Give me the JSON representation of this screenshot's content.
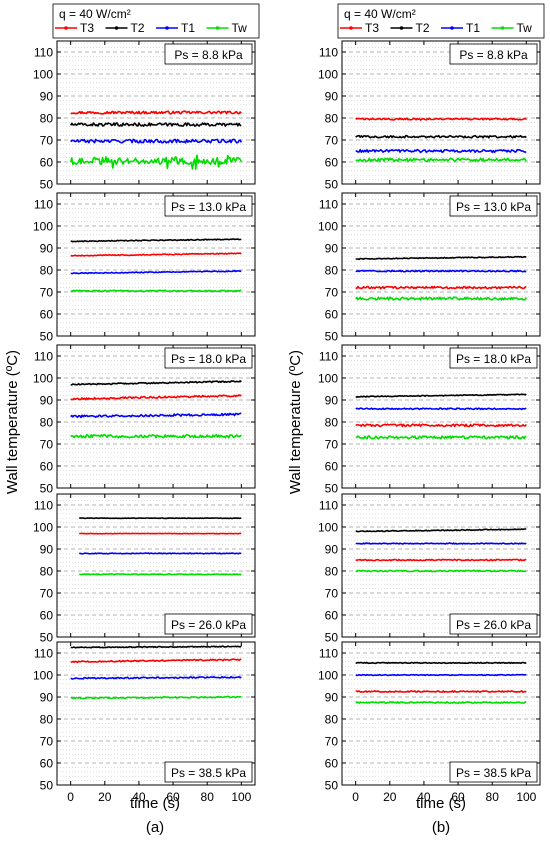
{
  "figure": {
    "ylabel": "Wall temperature (ºC)",
    "xlabel": "time (s)",
    "xticks": [
      "0",
      "20",
      "40",
      "60",
      "80",
      "100"
    ],
    "yticks": [
      "50",
      "60",
      "70",
      "80",
      "90",
      "100",
      "110"
    ],
    "columns": [
      {
        "label": "(a)",
        "legend_title": "q = 40 W/cm²"
      },
      {
        "label": "(b)",
        "legend_title": "q = 40 W/cm²"
      }
    ],
    "legend_series": [
      {
        "name": "T3",
        "color": "#ff0000"
      },
      {
        "name": "T2",
        "color": "#000000"
      },
      {
        "name": "T1",
        "color": "#0000ff"
      },
      {
        "name": "Tw",
        "color": "#00dd00"
      }
    ]
  },
  "chart_data": [
    {
      "type": "line",
      "column": "a",
      "annotation": "Ps = 8.8 kPa",
      "annotation_pos": "top-right",
      "xlabel": "time (s)",
      "ylabel": "Wall temperature (ºC)",
      "xlim": [
        -8,
        108
      ],
      "ylim": [
        50,
        115
      ],
      "series": [
        {
          "name": "T3",
          "color": "#ff0000",
          "x": [
            0,
            100
          ],
          "level": 82.5,
          "noise": 0.6
        },
        {
          "name": "T2",
          "color": "#000000",
          "x": [
            0,
            100
          ],
          "level": 77.0,
          "noise": 0.7
        },
        {
          "name": "T1",
          "color": "#0000ff",
          "x": [
            0,
            100
          ],
          "level": 69.5,
          "noise": 0.8
        },
        {
          "name": "Tw",
          "color": "#00dd00",
          "x": [
            0,
            100
          ],
          "level": 60.5,
          "noise": 1.6
        }
      ]
    },
    {
      "type": "line",
      "column": "b",
      "annotation": "Ps = 8.8 kPa",
      "annotation_pos": "top-right",
      "xlabel": "time (s)",
      "ylabel": "Wall temperature (ºC)",
      "xlim": [
        -8,
        108
      ],
      "ylim": [
        50,
        115
      ],
      "series": [
        {
          "name": "T3",
          "color": "#ff0000",
          "x": [
            0,
            100
          ],
          "level": 79.5,
          "noise": 0.4
        },
        {
          "name": "T2",
          "color": "#000000",
          "x": [
            0,
            100
          ],
          "level": 71.5,
          "noise": 0.5
        },
        {
          "name": "T1",
          "color": "#0000ff",
          "x": [
            0,
            100
          ],
          "level": 65.0,
          "noise": 0.6
        },
        {
          "name": "Tw",
          "color": "#00dd00",
          "x": [
            0,
            100
          ],
          "level": 61.0,
          "noise": 0.7
        }
      ]
    },
    {
      "type": "line",
      "column": "a",
      "annotation": "Ps = 13.0 kPa",
      "annotation_pos": "top-right",
      "xlabel": "time (s)",
      "ylabel": "Wall temperature (ºC)",
      "xlim": [
        -8,
        108
      ],
      "ylim": [
        50,
        115
      ],
      "series": [
        {
          "name": "T2",
          "color": "#000000",
          "x": [
            0,
            100
          ],
          "level": 93.0,
          "end": 94.0,
          "noise": 0.2
        },
        {
          "name": "T3",
          "color": "#ff0000",
          "x": [
            0,
            100
          ],
          "level": 86.5,
          "end": 87.5,
          "noise": 0.2
        },
        {
          "name": "T1",
          "color": "#0000ff",
          "x": [
            0,
            100
          ],
          "level": 78.5,
          "end": 79.5,
          "noise": 0.2
        },
        {
          "name": "Tw",
          "color": "#00dd00",
          "x": [
            0,
            100
          ],
          "level": 70.5,
          "noise": 0.3
        }
      ]
    },
    {
      "type": "line",
      "column": "b",
      "annotation": "Ps = 13.0 kPa",
      "annotation_pos": "top-right",
      "xlabel": "time (s)",
      "ylabel": "Wall temperature (ºC)",
      "xlim": [
        -8,
        108
      ],
      "ylim": [
        50,
        115
      ],
      "series": [
        {
          "name": "T2",
          "color": "#000000",
          "x": [
            0,
            100
          ],
          "level": 85.0,
          "end": 86.0,
          "noise": 0.2
        },
        {
          "name": "T1",
          "color": "#0000ff",
          "x": [
            0,
            100
          ],
          "level": 79.5,
          "noise": 0.3
        },
        {
          "name": "T3",
          "color": "#ff0000",
          "x": [
            0,
            100
          ],
          "level": 72.0,
          "noise": 0.5
        },
        {
          "name": "Tw",
          "color": "#00dd00",
          "x": [
            0,
            100
          ],
          "level": 67.0,
          "noise": 0.6
        }
      ]
    },
    {
      "type": "line",
      "column": "a",
      "annotation": "Ps = 18.0 kPa",
      "annotation_pos": "top-right",
      "xlabel": "time (s)",
      "ylabel": "Wall temperature (ºC)",
      "xlim": [
        -8,
        108
      ],
      "ylim": [
        50,
        115
      ],
      "series": [
        {
          "name": "T2",
          "color": "#000000",
          "x": [
            0,
            100
          ],
          "level": 97.0,
          "end": 98.5,
          "noise": 0.3
        },
        {
          "name": "T3",
          "color": "#ff0000",
          "x": [
            0,
            100
          ],
          "level": 90.5,
          "end": 92.0,
          "noise": 0.4
        },
        {
          "name": "T1",
          "color": "#0000ff",
          "x": [
            0,
            100
          ],
          "level": 82.5,
          "end": 83.5,
          "noise": 0.5
        },
        {
          "name": "Tw",
          "color": "#00dd00",
          "x": [
            0,
            100
          ],
          "level": 73.5,
          "noise": 0.7
        }
      ]
    },
    {
      "type": "line",
      "column": "b",
      "annotation": "Ps = 18.0 kPa",
      "annotation_pos": "top-right",
      "xlabel": "time (s)",
      "ylabel": "Wall temperature (ºC)",
      "xlim": [
        -8,
        108
      ],
      "ylim": [
        50,
        115
      ],
      "series": [
        {
          "name": "T2",
          "color": "#000000",
          "x": [
            0,
            100
          ],
          "level": 91.5,
          "end": 92.5,
          "noise": 0.2
        },
        {
          "name": "T1",
          "color": "#0000ff",
          "x": [
            0,
            100
          ],
          "level": 86.0,
          "noise": 0.3
        },
        {
          "name": "T3",
          "color": "#ff0000",
          "x": [
            0,
            100
          ],
          "level": 78.5,
          "noise": 0.5
        },
        {
          "name": "Tw",
          "color": "#00dd00",
          "x": [
            0,
            100
          ],
          "level": 73.0,
          "noise": 0.6
        }
      ]
    },
    {
      "type": "line",
      "column": "a",
      "annotation": "Ps = 26.0 kPa",
      "annotation_pos": "bottom-right",
      "xlabel": "time (s)",
      "ylabel": "Wall temperature (ºC)",
      "xlim": [
        -8,
        108
      ],
      "ylim": [
        50,
        115
      ],
      "series": [
        {
          "name": "T2",
          "color": "#000000",
          "x": [
            5,
            100
          ],
          "level": 104.0,
          "noise": 0.1
        },
        {
          "name": "T3",
          "color": "#ff0000",
          "x": [
            5,
            100
          ],
          "level": 97.0,
          "noise": 0.1
        },
        {
          "name": "T1",
          "color": "#0000ff",
          "x": [
            5,
            100
          ],
          "level": 88.0,
          "noise": 0.2
        },
        {
          "name": "Tw",
          "color": "#00dd00",
          "x": [
            5,
            100
          ],
          "level": 78.5,
          "noise": 0.2
        }
      ]
    },
    {
      "type": "line",
      "column": "b",
      "annotation": "Ps = 26.0 kPa",
      "annotation_pos": "bottom-right",
      "xlabel": "time (s)",
      "ylabel": "Wall temperature (ºC)",
      "xlim": [
        -8,
        108
      ],
      "ylim": [
        50,
        115
      ],
      "series": [
        {
          "name": "T2",
          "color": "#000000",
          "x": [
            0,
            100
          ],
          "level": 98.0,
          "end": 99.0,
          "noise": 0.2
        },
        {
          "name": "T1",
          "color": "#0000ff",
          "x": [
            0,
            100
          ],
          "level": 92.5,
          "noise": 0.2
        },
        {
          "name": "T3",
          "color": "#ff0000",
          "x": [
            0,
            100
          ],
          "level": 85.0,
          "noise": 0.3
        },
        {
          "name": "Tw",
          "color": "#00dd00",
          "x": [
            0,
            100
          ],
          "level": 80.0,
          "noise": 0.3
        }
      ]
    },
    {
      "type": "line",
      "column": "a",
      "annotation": "Ps = 38.5 kPa",
      "annotation_pos": "bottom-right",
      "xlabel": "time (s)",
      "ylabel": "Wall temperature (ºC)",
      "xlim": [
        -8,
        108
      ],
      "ylim": [
        50,
        115
      ],
      "series": [
        {
          "name": "T2",
          "color": "#000000",
          "x": [
            0,
            100
          ],
          "level": 112.5,
          "end": 113.0,
          "noise": 0.2
        },
        {
          "name": "T3",
          "color": "#ff0000",
          "x": [
            0,
            100
          ],
          "level": 106.0,
          "end": 107.0,
          "noise": 0.3
        },
        {
          "name": "T1",
          "color": "#0000ff",
          "x": [
            0,
            100
          ],
          "level": 98.5,
          "end": 99.0,
          "noise": 0.3
        },
        {
          "name": "Tw",
          "color": "#00dd00",
          "x": [
            0,
            100
          ],
          "level": 89.5,
          "end": 90.0,
          "noise": 0.3
        }
      ]
    },
    {
      "type": "line",
      "column": "b",
      "annotation": "Ps = 38.5 kPa",
      "annotation_pos": "bottom-right",
      "xlabel": "time (s)",
      "ylabel": "Wall temperature (ºC)",
      "xlim": [
        -8,
        108
      ],
      "ylim": [
        50,
        115
      ],
      "series": [
        {
          "name": "T2",
          "color": "#000000",
          "x": [
            0,
            100
          ],
          "level": 105.5,
          "noise": 0.2
        },
        {
          "name": "T1",
          "color": "#0000ff",
          "x": [
            0,
            100
          ],
          "level": 100.0,
          "noise": 0.2
        },
        {
          "name": "T3",
          "color": "#ff0000",
          "x": [
            0,
            100
          ],
          "level": 92.5,
          "noise": 0.3
        },
        {
          "name": "Tw",
          "color": "#00dd00",
          "x": [
            0,
            100
          ],
          "level": 87.5,
          "noise": 0.3
        }
      ]
    }
  ]
}
